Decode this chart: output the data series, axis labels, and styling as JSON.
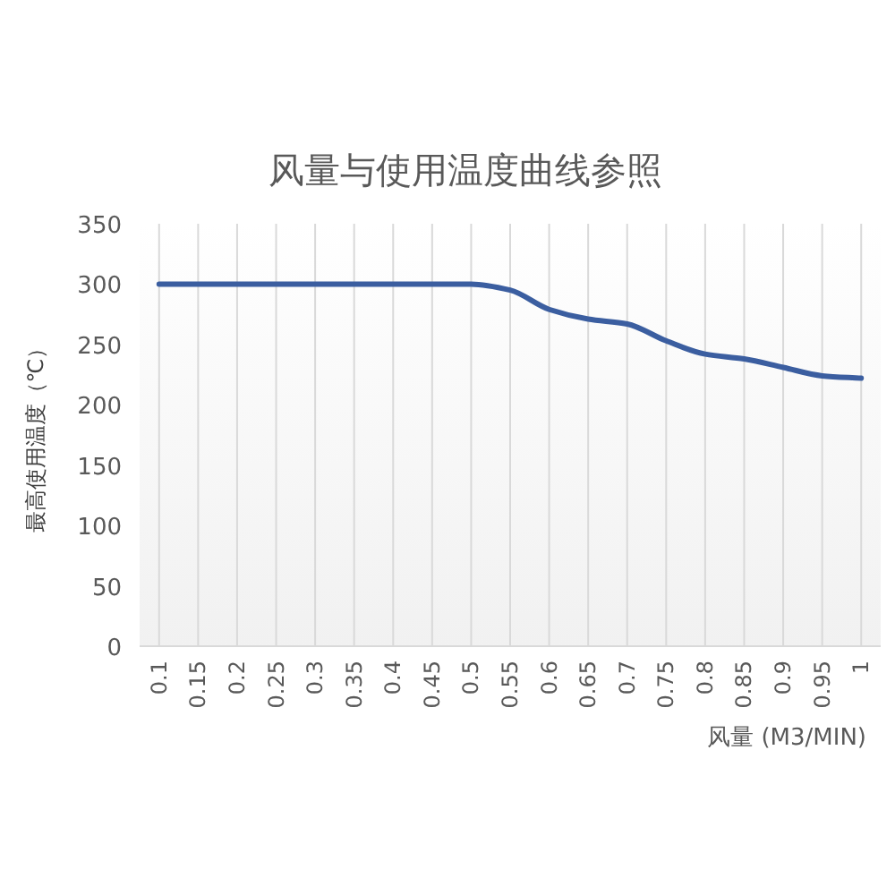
{
  "chart_data": {
    "type": "line",
    "title": "风量与使用温度曲线参照",
    "xlabel": "风量 (M3/MIN)",
    "ylabel": "最高使用温度（℃）",
    "categories": [
      "0.1",
      "0.15",
      "0.2",
      "0.25",
      "0.3",
      "0.35",
      "0.4",
      "0.45",
      "0.5",
      "0.55",
      "0.6",
      "0.65",
      "0.7",
      "0.75",
      "0.8",
      "0.85",
      "0.9",
      "0.95",
      "1"
    ],
    "series": [
      {
        "color": "#3b5ea0",
        "values": [
          300,
          300,
          300,
          300,
          300,
          300,
          300,
          300,
          300,
          295,
          279,
          271,
          267,
          253,
          242,
          238,
          231,
          224,
          222
        ]
      }
    ],
    "ylim": [
      0,
      350
    ],
    "yticks": [
      0,
      50,
      100,
      150,
      200,
      250,
      300,
      350
    ],
    "grid": "x",
    "marker": "none",
    "line_style": "solid"
  }
}
